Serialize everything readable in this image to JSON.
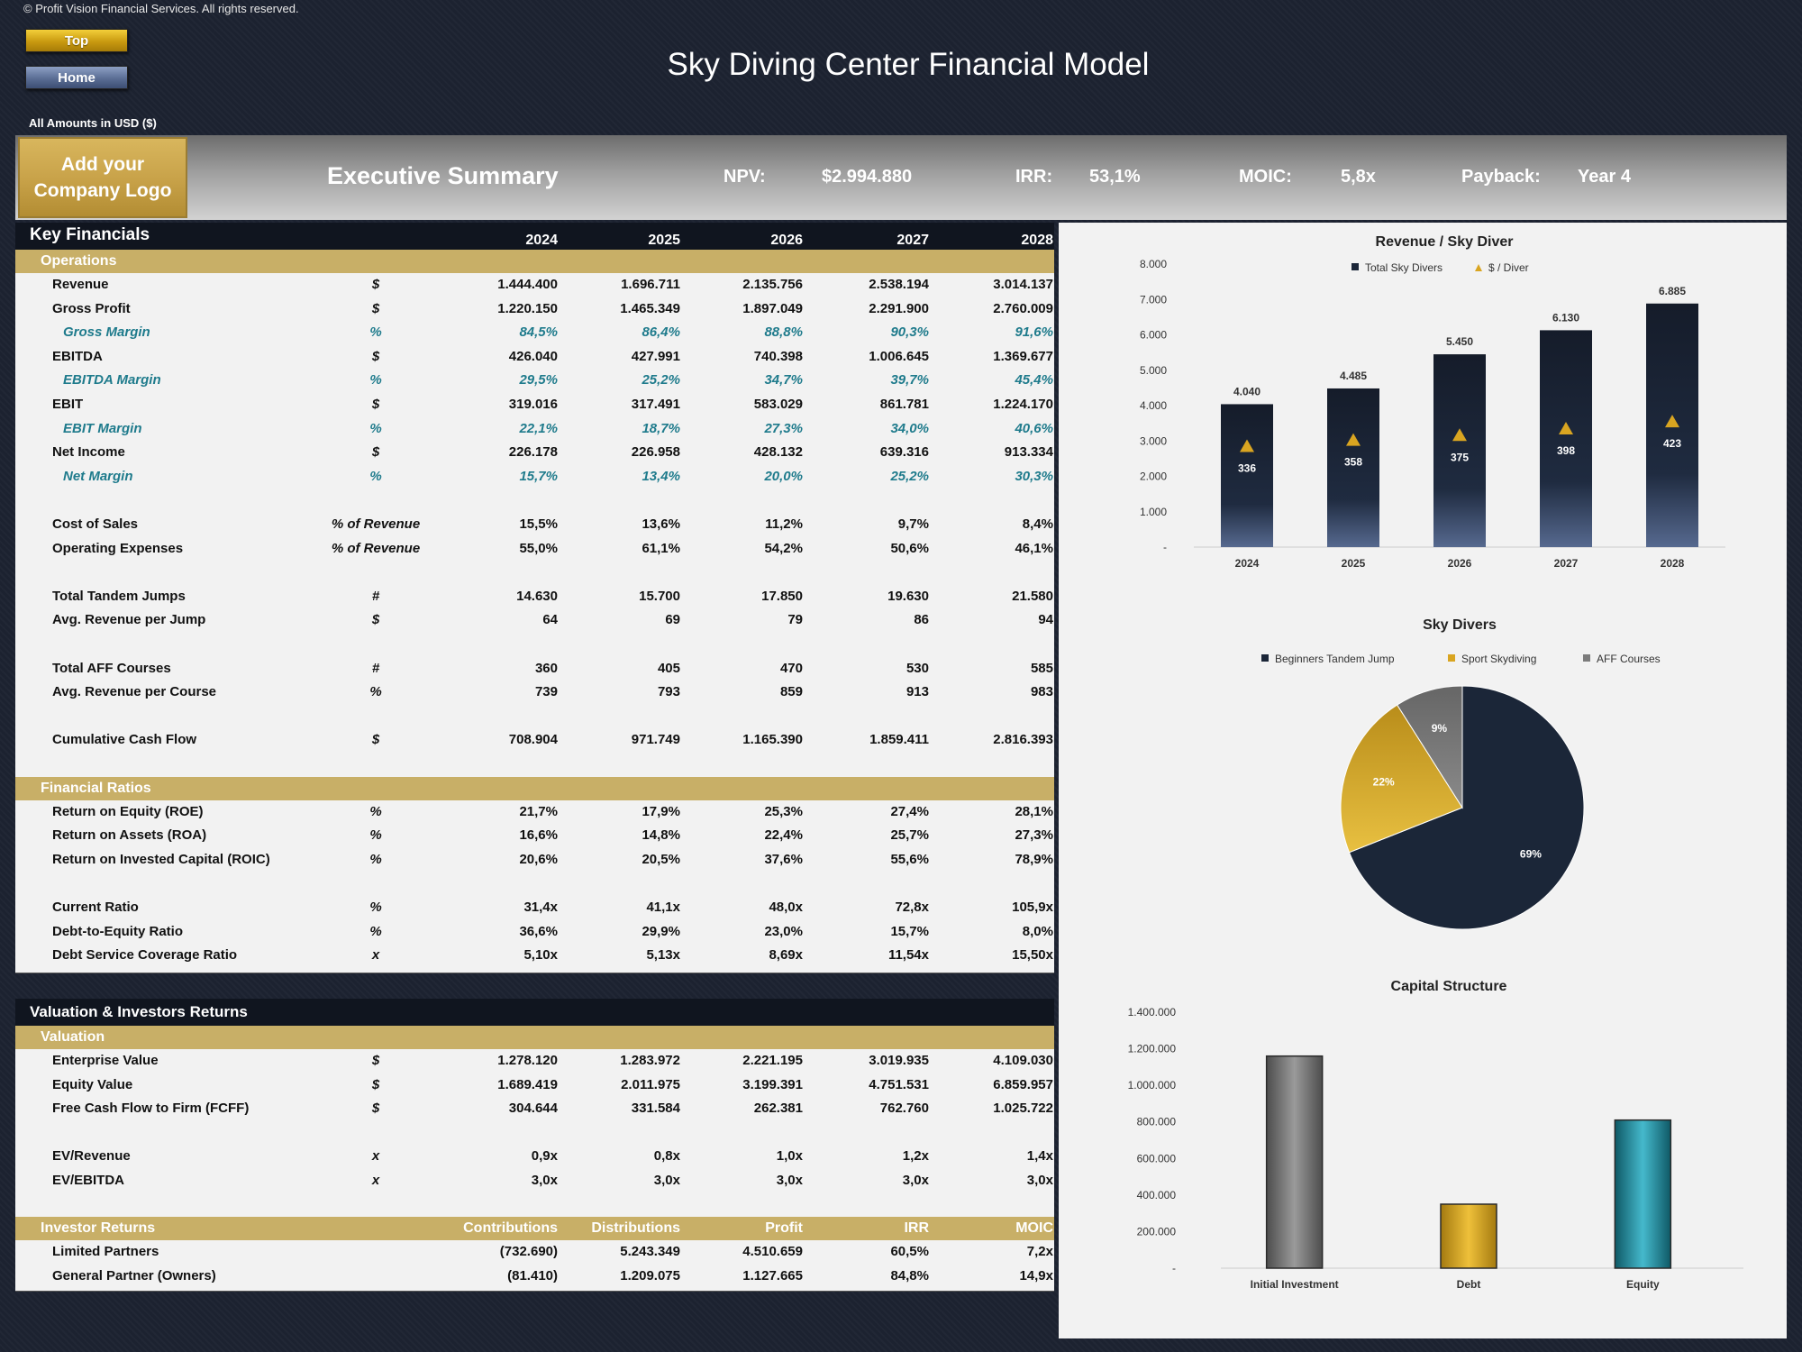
{
  "copyright": "© Profit Vision Financial Services. All rights reserved.",
  "nav": {
    "top": "Top",
    "home": "Home"
  },
  "title": "Sky Diving Center Financial Model",
  "amounts": "All Amounts in  USD ($)",
  "summary": {
    "logo_line1": "Add your",
    "logo_line2": "Company Logo",
    "title": "Executive Summary",
    "npv_label": "NPV:",
    "npv_value": "$2.994.880",
    "irr_label": "IRR:",
    "irr_value": "53,1%",
    "moic_label": "MOIC:",
    "moic_value": "5,8x",
    "payback_label": "Payback:",
    "payback_value": "Year 4"
  },
  "key_financials": {
    "title": "Key Financials",
    "years": [
      "2024",
      "2025",
      "2026",
      "2027",
      "2028"
    ],
    "sections": [
      {
        "header": "Operations",
        "rows": [
          {
            "label": "Revenue",
            "unit": "$",
            "values": [
              "1.444.400",
              "1.696.711",
              "2.135.756",
              "2.538.194",
              "3.014.137"
            ]
          },
          {
            "label": "Gross Profit",
            "unit": "$",
            "values": [
              "1.220.150",
              "1.465.349",
              "1.897.049",
              "2.291.900",
              "2.760.009"
            ]
          },
          {
            "label": "Gross Margin",
            "unit": "%",
            "sub": true,
            "values": [
              "84,5%",
              "86,4%",
              "88,8%",
              "90,3%",
              "91,6%"
            ]
          },
          {
            "label": "EBITDA",
            "unit": "$",
            "values": [
              "426.040",
              "427.991",
              "740.398",
              "1.006.645",
              "1.369.677"
            ]
          },
          {
            "label": "EBITDA Margin",
            "unit": "%",
            "sub": true,
            "values": [
              "29,5%",
              "25,2%",
              "34,7%",
              "39,7%",
              "45,4%"
            ]
          },
          {
            "label": "EBIT",
            "unit": "$",
            "values": [
              "319.016",
              "317.491",
              "583.029",
              "861.781",
              "1.224.170"
            ]
          },
          {
            "label": "EBIT Margin",
            "unit": "%",
            "sub": true,
            "values": [
              "22,1%",
              "18,7%",
              "27,3%",
              "34,0%",
              "40,6%"
            ]
          },
          {
            "label": "Net Income",
            "unit": "$",
            "values": [
              "226.178",
              "226.958",
              "428.132",
              "639.316",
              "913.334"
            ]
          },
          {
            "label": "Net Margin",
            "unit": "%",
            "sub": true,
            "values": [
              "15,7%",
              "13,4%",
              "20,0%",
              "25,2%",
              "30,3%"
            ]
          },
          {
            "spacer": true
          },
          {
            "label": "Cost of Sales",
            "unit": "% of Revenue",
            "values": [
              "15,5%",
              "13,6%",
              "11,2%",
              "9,7%",
              "8,4%"
            ]
          },
          {
            "label": "Operating Expenses",
            "unit": "% of Revenue",
            "values": [
              "55,0%",
              "61,1%",
              "54,2%",
              "50,6%",
              "46,1%"
            ]
          },
          {
            "spacer": true
          },
          {
            "label": "Total Tandem Jumps",
            "unit": "#",
            "values": [
              "14.630",
              "15.700",
              "17.850",
              "19.630",
              "21.580"
            ]
          },
          {
            "label": "Avg. Revenue per Jump",
            "unit": "$",
            "values": [
              "64",
              "69",
              "79",
              "86",
              "94"
            ]
          },
          {
            "spacer": true
          },
          {
            "label": "Total AFF Courses",
            "unit": "#",
            "values": [
              "360",
              "405",
              "470",
              "530",
              "585"
            ]
          },
          {
            "label": "Avg. Revenue per Course",
            "unit": "%",
            "values": [
              "739",
              "793",
              "859",
              "913",
              "983"
            ]
          },
          {
            "spacer": true
          },
          {
            "label": "Cumulative Cash Flow",
            "unit": "$",
            "values": [
              "708.904",
              "971.749",
              "1.165.390",
              "1.859.411",
              "2.816.393"
            ]
          },
          {
            "spacer": true
          }
        ]
      },
      {
        "header": "Financial Ratios",
        "rows": [
          {
            "label": "Return on Equity (ROE)",
            "unit": "%",
            "values": [
              "21,7%",
              "17,9%",
              "25,3%",
              "27,4%",
              "28,1%"
            ]
          },
          {
            "label": "Return on Assets (ROA)",
            "unit": "%",
            "values": [
              "16,6%",
              "14,8%",
              "22,4%",
              "25,7%",
              "27,3%"
            ]
          },
          {
            "label": "Return on Invested Capital (ROIC)",
            "unit": "%",
            "values": [
              "20,6%",
              "20,5%",
              "37,6%",
              "55,6%",
              "78,9%"
            ]
          },
          {
            "spacer": true
          },
          {
            "label": "Current Ratio",
            "unit": "%",
            "values": [
              "31,4x",
              "41,1x",
              "48,0x",
              "72,8x",
              "105,9x"
            ]
          },
          {
            "label": "Debt-to-Equity Ratio",
            "unit": "%",
            "values": [
              "36,6%",
              "29,9%",
              "23,0%",
              "15,7%",
              "8,0%"
            ]
          },
          {
            "label": "Debt Service Coverage Ratio",
            "unit": "x",
            "values": [
              "5,10x",
              "5,13x",
              "8,69x",
              "11,54x",
              "15,50x"
            ]
          }
        ]
      }
    ]
  },
  "valuation": {
    "title": "Valuation & Investors Returns",
    "sections": [
      {
        "header": "Valuation",
        "rows": [
          {
            "label": "Enterprise Value",
            "unit": "$",
            "values": [
              "1.278.120",
              "1.283.972",
              "2.221.195",
              "3.019.935",
              "4.109.030"
            ]
          },
          {
            "label": "Equity Value",
            "unit": "$",
            "values": [
              "1.689.419",
              "2.011.975",
              "3.199.391",
              "4.751.531",
              "6.859.957"
            ]
          },
          {
            "label": "Free Cash Flow to Firm (FCFF)",
            "unit": "$",
            "values": [
              "304.644",
              "331.584",
              "262.381",
              "762.760",
              "1.025.722"
            ]
          },
          {
            "spacer": true
          },
          {
            "label": "EV/Revenue",
            "unit": "x",
            "values": [
              "0,9x",
              "0,8x",
              "1,0x",
              "1,2x",
              "1,4x"
            ]
          },
          {
            "label": "EV/EBITDA",
            "unit": "x",
            "values": [
              "3,0x",
              "3,0x",
              "3,0x",
              "3,0x",
              "3,0x"
            ]
          },
          {
            "spacer": true
          }
        ]
      },
      {
        "header": "Investor Returns",
        "columns": [
          "Contributions",
          "Distributions",
          "Profit",
          "IRR",
          "MOIC"
        ],
        "rows": [
          {
            "label": "Limited Partners",
            "unit": "",
            "values": [
              "(732.690)",
              "5.243.349",
              "4.510.659",
              "60,5%",
              "7,2x"
            ]
          },
          {
            "label": "General Partner (Owners)",
            "unit": "",
            "values": [
              "(81.410)",
              "1.209.075",
              "1.127.665",
              "84,8%",
              "14,9x"
            ]
          }
        ]
      }
    ]
  },
  "colors": {
    "navy": "#1b2638",
    "gold": "#d9a521",
    "gray": "#7c7c7c",
    "teal": "#23899a",
    "band": "#c8af67"
  },
  "chart_data": [
    {
      "type": "bar",
      "title": "Revenue / Sky Diver",
      "categories": [
        "2024",
        "2025",
        "2026",
        "2027",
        "2028"
      ],
      "series": [
        {
          "name": "Total Sky Divers",
          "values": [
            4040,
            4485,
            5450,
            6130,
            6885
          ],
          "labels": [
            "4.040",
            "4.485",
            "5.450",
            "6.130",
            "6.885"
          ]
        },
        {
          "name": "$ / Diver",
          "values": [
            336,
            358,
            375,
            398,
            423
          ],
          "labels": [
            "336",
            "358",
            "375",
            "398",
            "423"
          ]
        }
      ],
      "ylim": [
        0,
        8000
      ],
      "yticks": [
        "-",
        "1.000",
        "2.000",
        "3.000",
        "4.000",
        "5.000",
        "6.000",
        "7.000",
        "8.000"
      ],
      "legend": "top"
    },
    {
      "type": "pie",
      "title": "Sky Divers",
      "categories": [
        "Beginners Tandem Jump",
        "Sport Skydiving",
        "AFF Courses"
      ],
      "values": [
        69,
        22,
        9
      ],
      "labels": [
        "69%",
        "22%",
        "9%"
      ],
      "legend": "top"
    },
    {
      "type": "bar",
      "title": "Capital Structure",
      "categories": [
        "Initial Investment",
        "Debt",
        "Equity"
      ],
      "values": [
        1160000,
        350000,
        810000
      ],
      "ylim": [
        0,
        1400000
      ],
      "yticks": [
        "-",
        "200.000",
        "400.000",
        "600.000",
        "800.000",
        "1.000.000",
        "1.200.000",
        "1.400.000"
      ]
    }
  ]
}
